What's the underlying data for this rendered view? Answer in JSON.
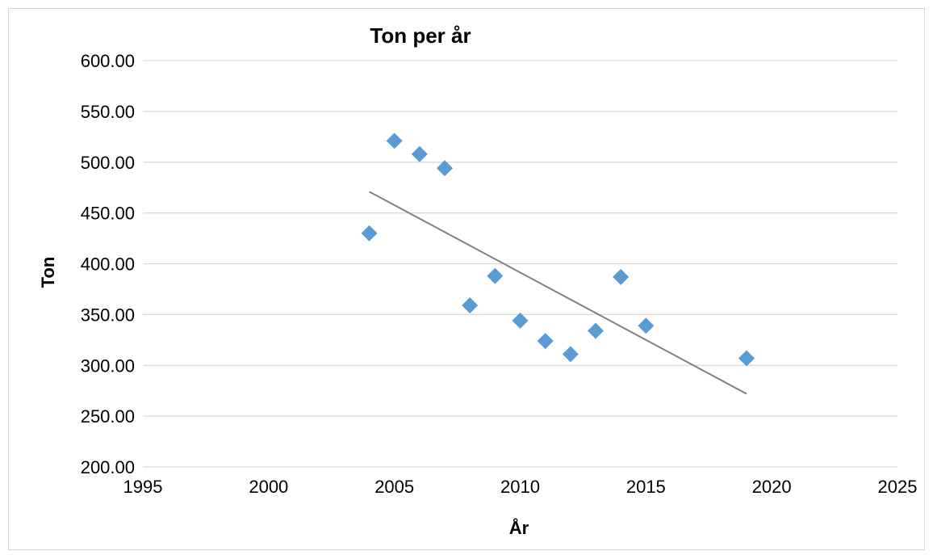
{
  "chart_data": {
    "type": "scatter",
    "title": "Ton per år",
    "xlabel": "År",
    "ylabel": "Ton",
    "xlim": [
      1995,
      2025
    ],
    "ylim": [
      200,
      600
    ],
    "x_ticks": [
      "1995",
      "2000",
      "2005",
      "2010",
      "2015",
      "2020",
      "2025"
    ],
    "y_ticks": [
      "200.00",
      "250.00",
      "300.00",
      "350.00",
      "400.00",
      "450.00",
      "500.00",
      "550.00",
      "600.00"
    ],
    "grid": true,
    "legend": "none",
    "series": [
      {
        "color": "#5b9bd5",
        "marker": "diamond",
        "points": [
          {
            "x": 2004,
            "y": 430
          },
          {
            "x": 2005,
            "y": 521
          },
          {
            "x": 2006,
            "y": 508
          },
          {
            "x": 2007,
            "y": 494
          },
          {
            "x": 2008,
            "y": 359
          },
          {
            "x": 2009,
            "y": 388
          },
          {
            "x": 2010,
            "y": 344
          },
          {
            "x": 2011,
            "y": 324
          },
          {
            "x": 2012,
            "y": 311
          },
          {
            "x": 2013,
            "y": 334
          },
          {
            "x": 2014,
            "y": 387
          },
          {
            "x": 2015,
            "y": 339
          },
          {
            "x": 2019,
            "y": 307
          }
        ]
      }
    ],
    "trendline": {
      "type": "linear",
      "color": "#808080",
      "from": {
        "x": 2004,
        "y": 471
      },
      "to": {
        "x": 2019,
        "y": 272
      }
    }
  }
}
